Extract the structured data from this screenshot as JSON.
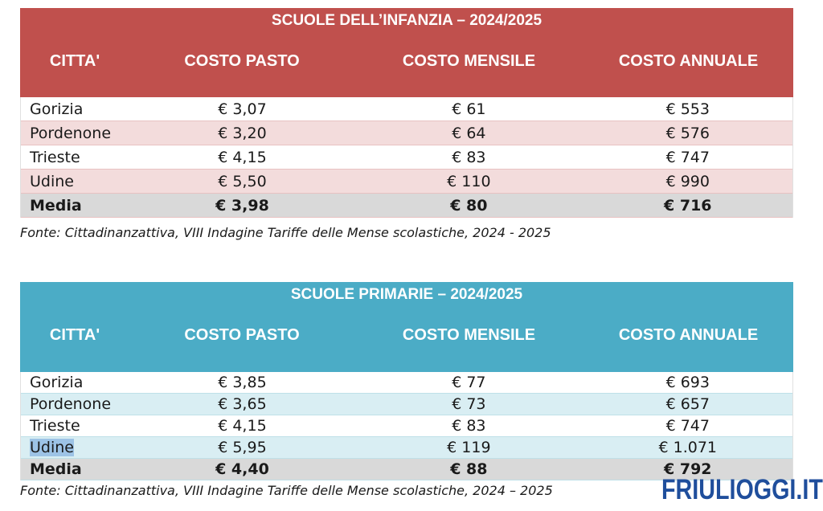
{
  "table1": {
    "title": "SCUOLE DELL’INFANZIA – 2024/2025",
    "columns": [
      "CITTA'",
      "COSTO PASTO",
      "COSTO MENSILE",
      "COSTO ANNUALE"
    ],
    "rows": [
      [
        "Gorizia",
        "€ 3,07",
        "€ 61",
        "€ 553"
      ],
      [
        "Pordenone",
        "€ 3,20",
        "€ 64",
        "€ 576"
      ],
      [
        "Trieste",
        "€ 4,15",
        "€ 83",
        "€ 747"
      ],
      [
        "Udine",
        "€ 5,50",
        "€ 110",
        "€ 990"
      ]
    ],
    "average": [
      "Media",
      "€ 3,98",
      "€ 80",
      "€ 716"
    ],
    "source": "Fonte: Cittadinanzattiva, VIII Indagine Tariffe delle Mense scolastiche, 2024 - 2025",
    "header_color": "#c0504d",
    "stripe_color": "#f3dcdc"
  },
  "table2": {
    "title": "SCUOLE PRIMARIE – 2024/2025",
    "columns": [
      "CITTA'",
      "COSTO PASTO",
      "COSTO MENSILE",
      "COSTO ANNUALE"
    ],
    "rows": [
      [
        "Gorizia",
        "€ 3,85",
        "€ 77",
        "€ 693"
      ],
      [
        "Pordenone",
        "€ 3,65",
        "€ 73",
        "€ 657"
      ],
      [
        "Trieste",
        "€ 4,15",
        "€ 83",
        "€ 747"
      ],
      [
        "Udine",
        "€ 5,95",
        "€ 119",
        "€ 1.071"
      ]
    ],
    "average": [
      "Media",
      "€ 4,40",
      "€ 88",
      "€ 792"
    ],
    "source": "Fonte: Cittadinanzattiva, VIII Indagine Tariffe delle Mense scolastiche, 2024 – 2025",
    "header_color": "#4bacc6",
    "stripe_color": "#d9eef3"
  },
  "logo": {
    "text": "FRIULIOGGI.IT",
    "color": "#1f4e9c"
  }
}
